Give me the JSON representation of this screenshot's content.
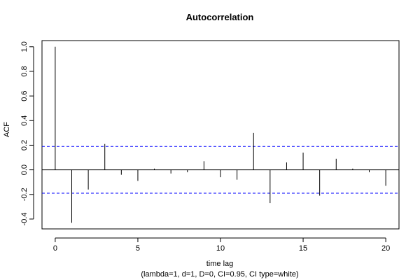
{
  "chart_data": {
    "type": "bar",
    "title": "Autocorrelation",
    "xlabel": "time lag",
    "subtitle": "(lambda=1, d=1, D=0, CI=0.95, CI type=white)",
    "ylabel": "ACF",
    "x": [
      0,
      1,
      2,
      3,
      4,
      5,
      6,
      7,
      8,
      9,
      10,
      11,
      12,
      13,
      14,
      15,
      16,
      17,
      18,
      19,
      20
    ],
    "values": [
      1.0,
      -0.43,
      -0.16,
      0.21,
      -0.04,
      -0.09,
      0.01,
      -0.03,
      -0.02,
      0.07,
      -0.06,
      -0.08,
      0.3,
      -0.27,
      0.06,
      0.14,
      -0.21,
      0.09,
      0.01,
      -0.02,
      -0.13
    ],
    "confidence_interval": [
      -0.19,
      0.19
    ],
    "xlim": [
      -0.8,
      20.8
    ],
    "ylim": [
      -0.48,
      1.05
    ],
    "x_ticks": [
      0,
      5,
      10,
      15,
      20
    ],
    "y_ticks": [
      -0.4,
      -0.2,
      0.0,
      0.2,
      0.4,
      0.6,
      0.8,
      1.0
    ],
    "x_tick_labels": [
      "0",
      "5",
      "10",
      "15",
      "20"
    ],
    "y_tick_labels": [
      "-0.4",
      "-0.2",
      "0.0",
      "0.2",
      "0.4",
      "0.6",
      "0.8",
      "1.0"
    ],
    "grid": false,
    "colors": {
      "bars": "#000000",
      "ci_line": "#0000ff",
      "zero_line": "#000000",
      "axes": "#000000"
    }
  }
}
